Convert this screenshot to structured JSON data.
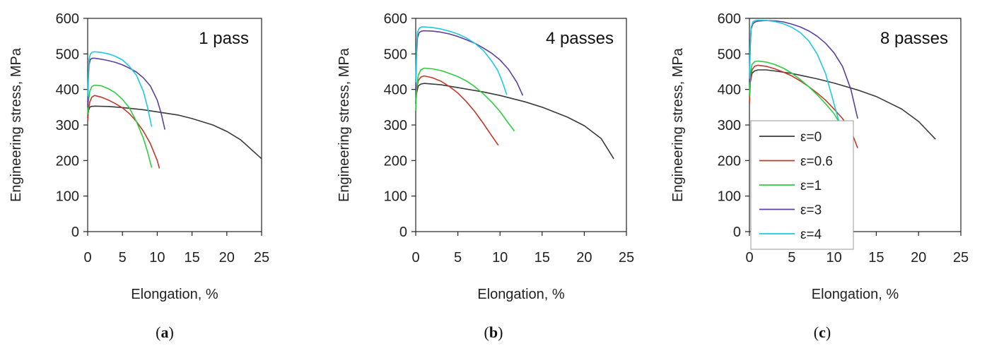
{
  "chart_data": [
    {
      "type": "line",
      "panel_label": "(a)",
      "title": "1 pass",
      "xlabel": "Elongation, %",
      "ylabel": "Engineering stress, MPa",
      "xlim": [
        0,
        25
      ],
      "ylim": [
        0,
        600
      ],
      "xticks": [
        0,
        5,
        10,
        15,
        20,
        25
      ],
      "yticks": [
        0,
        100,
        200,
        300,
        400,
        500,
        600
      ],
      "grid": false,
      "legend": null,
      "series": [
        {
          "color": "#3a3a3a",
          "x": [
            0,
            0.1,
            0.3,
            0.5,
            1,
            3,
            5,
            8,
            10,
            13,
            15,
            18,
            20,
            22,
            25
          ],
          "y": [
            320,
            340,
            350,
            352,
            353,
            352,
            349,
            343,
            337,
            328,
            318,
            300,
            282,
            258,
            205
          ]
        },
        {
          "color": "#c0392b",
          "x": [
            0,
            0.1,
            0.3,
            0.6,
            1,
            2,
            3,
            4,
            5,
            6,
            7,
            8,
            9,
            10,
            10.3
          ],
          "y": [
            310,
            340,
            365,
            378,
            383,
            378,
            370,
            360,
            348,
            332,
            310,
            283,
            248,
            200,
            178
          ]
        },
        {
          "color": "#2ecc40",
          "x": [
            0,
            0.1,
            0.3,
            0.6,
            1,
            2,
            3,
            4,
            5,
            6,
            7,
            8,
            8.6,
            9.2
          ],
          "y": [
            330,
            365,
            395,
            408,
            412,
            410,
            402,
            390,
            372,
            348,
            310,
            263,
            225,
            180
          ]
        },
        {
          "color": "#5b3fa0",
          "x": [
            0,
            0.1,
            0.2,
            0.4,
            0.7,
            1,
            2,
            3,
            4,
            5,
            6,
            7,
            8,
            9,
            10,
            10.6,
            11.1
          ],
          "y": [
            350,
            430,
            470,
            485,
            488,
            488,
            485,
            481,
            476,
            469,
            460,
            449,
            433,
            410,
            370,
            330,
            287
          ]
        },
        {
          "color": "#20c8e0",
          "x": [
            0,
            0.1,
            0.2,
            0.4,
            0.7,
            1,
            2,
            3,
            4,
            5,
            6,
            7,
            8,
            8.6,
            9.2
          ],
          "y": [
            380,
            440,
            485,
            500,
            505,
            506,
            504,
            500,
            493,
            483,
            465,
            440,
            395,
            350,
            295
          ]
        }
      ]
    },
    {
      "type": "line",
      "panel_label": "(b)",
      "title": "4 passes",
      "xlabel": "Elongation, %",
      "ylabel": "Engineering stress, MPa",
      "xlim": [
        0,
        25
      ],
      "ylim": [
        0,
        600
      ],
      "xticks": [
        0,
        5,
        10,
        15,
        20,
        25
      ],
      "yticks": [
        0,
        100,
        200,
        300,
        400,
        500,
        600
      ],
      "grid": false,
      "legend": null,
      "series": [
        {
          "color": "#3a3a3a",
          "x": [
            0,
            0.1,
            0.3,
            0.6,
            1,
            3,
            5,
            8,
            10,
            13,
            15,
            18,
            20,
            22,
            23.5
          ],
          "y": [
            360,
            390,
            410,
            415,
            417,
            413,
            405,
            393,
            383,
            365,
            350,
            322,
            298,
            262,
            205
          ]
        },
        {
          "color": "#c0392b",
          "x": [
            0,
            0.1,
            0.3,
            0.6,
            1,
            2,
            3,
            4,
            5,
            6,
            7,
            8,
            9,
            9.8
          ],
          "y": [
            360,
            400,
            425,
            435,
            438,
            433,
            423,
            408,
            390,
            366,
            338,
            305,
            270,
            243
          ]
        },
        {
          "color": "#2ecc40",
          "x": [
            0,
            0.1,
            0.3,
            0.6,
            1,
            2,
            3,
            4,
            5,
            6,
            7,
            8,
            9,
            10,
            11,
            11.7
          ],
          "y": [
            340,
            400,
            440,
            455,
            460,
            458,
            453,
            445,
            436,
            424,
            408,
            388,
            365,
            338,
            305,
            283
          ]
        },
        {
          "color": "#5b3fa0",
          "x": [
            0,
            0.1,
            0.2,
            0.4,
            0.7,
            1,
            2,
            3,
            4,
            5,
            6,
            7,
            8,
            9,
            10,
            11,
            12,
            12.7
          ],
          "y": [
            400,
            500,
            545,
            560,
            564,
            565,
            564,
            561,
            556,
            549,
            540,
            530,
            517,
            502,
            483,
            457,
            420,
            383
          ]
        },
        {
          "color": "#20c8e0",
          "x": [
            0,
            0.1,
            0.2,
            0.4,
            0.7,
            1,
            2,
            3,
            4,
            5,
            6,
            7,
            8,
            9,
            9.7,
            10.3,
            10.8
          ],
          "y": [
            420,
            520,
            560,
            572,
            576,
            576,
            574,
            570,
            564,
            556,
            545,
            530,
            510,
            480,
            455,
            420,
            385
          ]
        }
      ]
    },
    {
      "type": "line",
      "panel_label": "(c)",
      "title": "8 passes",
      "xlabel": "Elongation, %",
      "ylabel": "Engineering stress, MPa",
      "xlim": [
        0,
        25
      ],
      "ylim": [
        0,
        600
      ],
      "xticks": [
        0,
        5,
        10,
        15,
        20,
        25
      ],
      "yticks": [
        0,
        100,
        200,
        300,
        400,
        500,
        600
      ],
      "grid": false,
      "legend": "lower-left",
      "series": [
        {
          "name": "ε=0",
          "color": "#3a3a3a",
          "x": [
            0,
            0.1,
            0.3,
            0.6,
            1,
            2,
            3,
            5,
            8,
            10,
            13,
            15,
            18,
            20,
            22
          ],
          "y": [
            380,
            420,
            445,
            452,
            455,
            455,
            452,
            445,
            430,
            418,
            397,
            380,
            345,
            310,
            260
          ]
        },
        {
          "name": "ε=0.6",
          "color": "#c0392b",
          "x": [
            0,
            0.1,
            0.3,
            0.6,
            1,
            2,
            3,
            4,
            5,
            6,
            7,
            8,
            9,
            10,
            11,
            12,
            12.8
          ],
          "y": [
            360,
            420,
            455,
            465,
            468,
            465,
            458,
            449,
            438,
            424,
            408,
            390,
            370,
            345,
            318,
            285,
            235
          ]
        },
        {
          "name": "ε=1",
          "color": "#2ecc40",
          "x": [
            0,
            0.1,
            0.3,
            0.6,
            1,
            2,
            3,
            4,
            5,
            6,
            7,
            8,
            9,
            10,
            10.8
          ],
          "y": [
            380,
            440,
            470,
            478,
            480,
            477,
            470,
            460,
            446,
            428,
            408,
            385,
            360,
            332,
            300
          ]
        },
        {
          "name": "ε=3",
          "color": "#5b3fa0",
          "x": [
            0,
            0.1,
            0.2,
            0.4,
            0.7,
            1,
            2,
            3,
            4,
            5,
            6,
            7,
            8,
            9,
            10,
            11,
            12,
            12.8
          ],
          "y": [
            420,
            520,
            570,
            585,
            590,
            592,
            594,
            593,
            590,
            584,
            576,
            565,
            550,
            530,
            503,
            465,
            400,
            318
          ]
        },
        {
          "name": "ε=4",
          "color": "#20c8e0",
          "x": [
            0,
            0.1,
            0.2,
            0.4,
            0.7,
            1,
            2,
            3,
            4,
            5,
            6,
            7,
            8,
            9,
            10,
            10.7
          ],
          "y": [
            430,
            530,
            575,
            590,
            594,
            595,
            594,
            591,
            585,
            575,
            560,
            537,
            500,
            445,
            360,
            300
          ]
        }
      ]
    }
  ]
}
